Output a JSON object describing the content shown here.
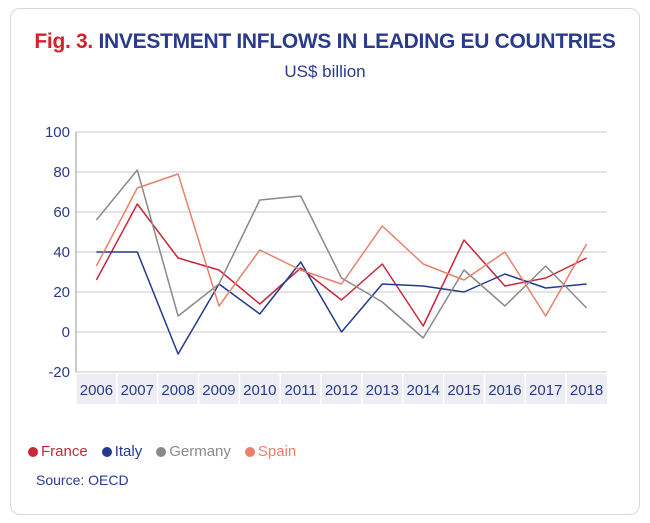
{
  "header": {
    "fig_label": "Fig. 3.",
    "title": "INVESTMENT INFLOWS IN LEADING EU COUNTRIES",
    "subtitle": "US$ billion"
  },
  "source": "Source: OECD",
  "chart_data": {
    "type": "line",
    "x": [
      "2006",
      "2007",
      "2008",
      "2009",
      "2010",
      "2011",
      "2012",
      "2013",
      "2014",
      "2015",
      "2016",
      "2017",
      "2018"
    ],
    "ylim": [
      -20,
      100
    ],
    "yticks": [
      -20,
      0,
      20,
      40,
      60,
      80,
      100
    ],
    "grid": true,
    "legend_position": "bottom-left",
    "series": [
      {
        "name": "France",
        "color": "#c8273a",
        "values": [
          26,
          64,
          37,
          31,
          14,
          32,
          16,
          34,
          3,
          46,
          23,
          27,
          37
        ]
      },
      {
        "name": "Italy",
        "color": "#233a8c",
        "values": [
          40,
          40,
          -11,
          24,
          9,
          35,
          0,
          24,
          23,
          20,
          29,
          22,
          24
        ]
      },
      {
        "name": "Germany",
        "color": "#8a8a8a",
        "values": [
          56,
          81,
          8,
          24,
          66,
          68,
          27,
          15,
          -3,
          31,
          13,
          33,
          12
        ]
      },
      {
        "name": "Spain",
        "color": "#e8806a",
        "values": [
          33,
          72,
          79,
          13,
          41,
          31,
          24,
          53,
          34,
          26,
          40,
          8,
          44
        ]
      }
    ]
  }
}
